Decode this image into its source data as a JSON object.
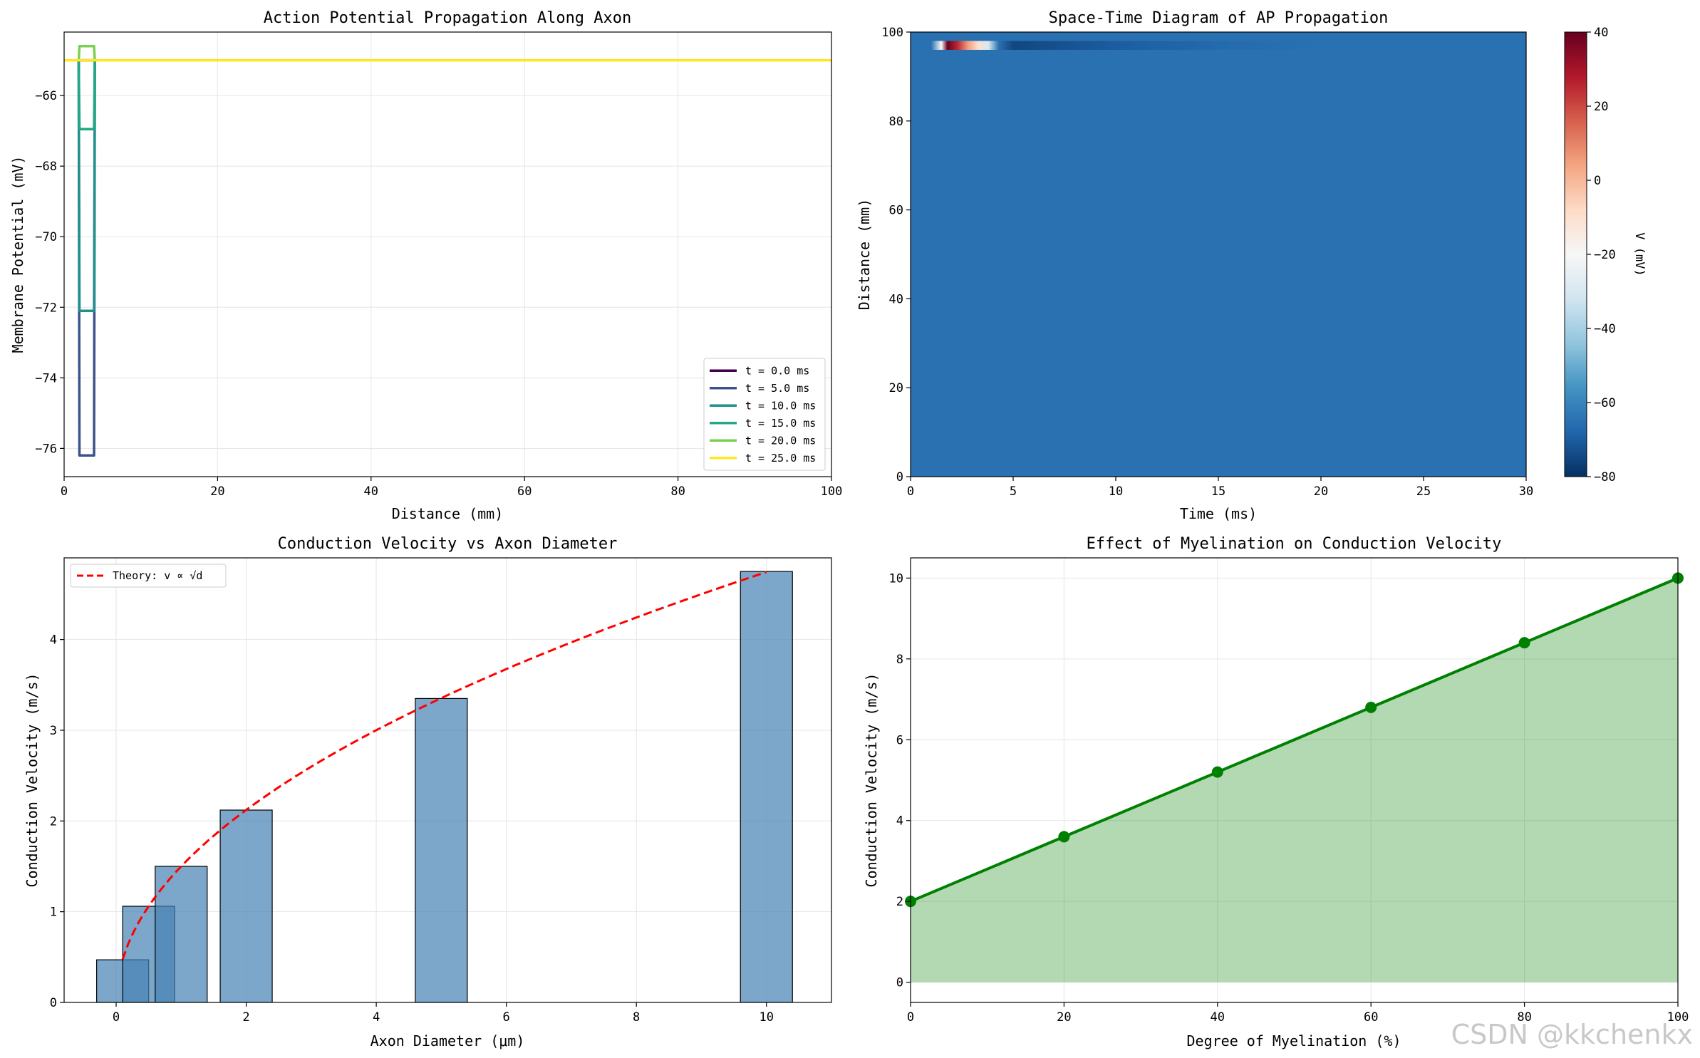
{
  "watermark": "CSDN @kkchenkx",
  "chart_data": [
    {
      "id": "ap",
      "type": "line",
      "title": "Action Potential Propagation Along Axon",
      "xlabel": "Distance (mm)",
      "ylabel": "Membrane Potential (mV)",
      "xlim": [
        0,
        100
      ],
      "ylim": [
        -76.8,
        -64.2
      ],
      "xticks": [
        0,
        20,
        40,
        60,
        80,
        100
      ],
      "yticks": [
        -76,
        -74,
        -72,
        -70,
        -68,
        -66
      ],
      "grid": true,
      "legend_position": "lower-right",
      "series": [
        {
          "name": "t = 0.0 ms",
          "color": "#440154",
          "x": [
            1.9,
            2.0,
            3.9,
            4.0
          ],
          "y": [
            -65,
            -65,
            -65,
            -65
          ]
        },
        {
          "name": "t = 5.0 ms",
          "color": "#3b528b",
          "x": [
            1.9,
            2.0,
            3.9,
            4.0
          ],
          "y": [
            -65,
            -76.2,
            -76.2,
            -65
          ]
        },
        {
          "name": "t = 10.0 ms",
          "color": "#21918c",
          "x": [
            1.9,
            2.0,
            3.9,
            4.0
          ],
          "y": [
            -65,
            -72.1,
            -72.1,
            -65
          ]
        },
        {
          "name": "t = 15.0 ms",
          "color": "#22a884",
          "x": [
            1.9,
            2.0,
            3.9,
            4.0
          ],
          "y": [
            -65,
            -66.95,
            -66.95,
            -65
          ]
        },
        {
          "name": "t = 20.0 ms",
          "color": "#7ad151",
          "x": [
            1.9,
            2.0,
            3.9,
            4.0
          ],
          "y": [
            -65,
            -64.6,
            -64.6,
            -65
          ]
        },
        {
          "name": "t = 25.0 ms",
          "color": "#fde725",
          "x": [
            0,
            100
          ],
          "y": [
            -65,
            -65
          ]
        }
      ]
    },
    {
      "id": "st",
      "type": "heatmap",
      "title": "Space-Time Diagram of AP Propagation",
      "xlabel": "Time (ms)",
      "ylabel": "Distance (mm)",
      "xlim": [
        0,
        30
      ],
      "ylim": [
        0,
        100
      ],
      "xticks": [
        0,
        5,
        10,
        15,
        20,
        25,
        30
      ],
      "yticks": [
        0,
        20,
        40,
        60,
        80,
        100
      ],
      "background_value": -65,
      "band": {
        "distance_range": [
          96,
          98
        ],
        "time": [
          1.0,
          1.5,
          1.8,
          2.3,
          2.8,
          3.3,
          3.8,
          4.3,
          5.0,
          7.0,
          10.0,
          15.0,
          20.0
        ],
        "value": [
          -65,
          -20,
          40,
          25,
          5,
          -10,
          -30,
          -65,
          -75,
          -73,
          -70,
          -67,
          -65
        ]
      },
      "colorbar": {
        "label": "V (mV)",
        "min": -80,
        "max": 40,
        "ticks": [
          -80,
          -60,
          -40,
          -20,
          0,
          20,
          40
        ],
        "colormap": "RdBu_r"
      }
    },
    {
      "id": "cv",
      "type": "bar",
      "title": "Conduction Velocity vs Axon Diameter",
      "xlabel": "Axon Diameter (μm)",
      "ylabel": "Conduction Velocity (m/s)",
      "xlim": [
        -0.8,
        11.0
      ],
      "ylim": [
        0,
        4.9
      ],
      "xticks": [
        0,
        2,
        4,
        6,
        8,
        10
      ],
      "yticks": [
        0,
        1,
        2,
        3,
        4
      ],
      "grid": true,
      "bar_width": 0.8,
      "bar_color": "#4682b4",
      "x": [
        0.1,
        0.5,
        1.0,
        2.0,
        5.0,
        10.0
      ],
      "values": [
        0.47,
        1.06,
        1.5,
        2.12,
        3.35,
        4.75
      ],
      "theory": {
        "label": "Theory: v ∝ √d",
        "color": "#ff0000",
        "scale": 1.5,
        "x_range": [
          0.1,
          10.0
        ]
      },
      "legend_position": "upper-left"
    },
    {
      "id": "my",
      "type": "area",
      "title": "Effect of Myelination on Conduction Velocity",
      "xlabel": "Degree of Myelination (%)",
      "ylabel": "Conduction Velocity (m/s)",
      "xlim": [
        0,
        100
      ],
      "ylim": [
        -0.5,
        10.5
      ],
      "xticks": [
        0,
        20,
        40,
        60,
        80,
        100
      ],
      "yticks": [
        0,
        2,
        4,
        6,
        8,
        10
      ],
      "grid": true,
      "color": "#008000",
      "x": [
        0,
        20,
        40,
        60,
        80,
        100
      ],
      "values": [
        2.0,
        3.6,
        5.2,
        6.8,
        8.4,
        10.0
      ]
    }
  ]
}
